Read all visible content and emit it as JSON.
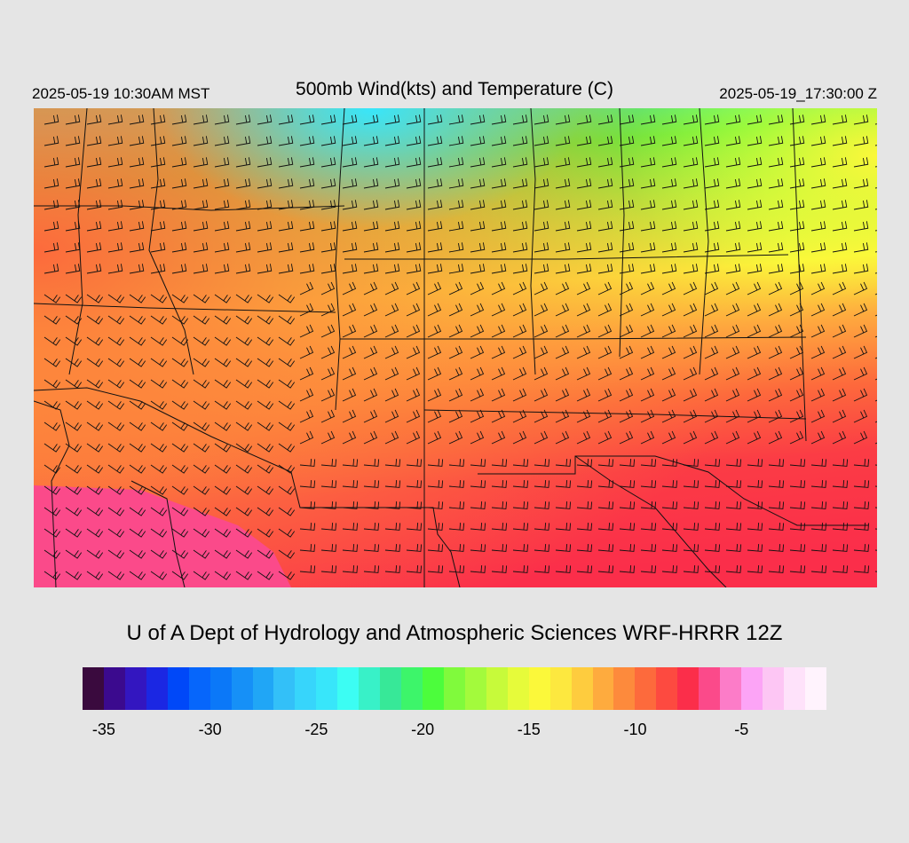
{
  "header": {
    "local_time": "2025-05-19 10:30AM MST",
    "title": "500mb Wind(kts) and Temperature (C)",
    "valid_time": "2025-05-19_17:30:00 Z"
  },
  "footer": {
    "credit": "U of A Dept of Hydrology and Atmospheric Sciences WRF-HRRR 12Z"
  },
  "legend": {
    "colors": [
      "#3a0a3e",
      "#3b0a8e",
      "#3316c0",
      "#1b27e3",
      "#0048f8",
      "#0666fb",
      "#0b78f8",
      "#1690f7",
      "#20a6f6",
      "#33c0f8",
      "#37d5fb",
      "#38e6fa",
      "#3cfdf3",
      "#38f1c8",
      "#37e898",
      "#3df56a",
      "#4cfd3c",
      "#80fa3c",
      "#a3fa3c",
      "#c7fa3a",
      "#e6fb3a",
      "#fbf83a",
      "#fde83f",
      "#fecc3e",
      "#feab3e",
      "#fd8a3c",
      "#fd6a3c",
      "#fd4a40",
      "#fb2e4a",
      "#fb4a8a",
      "#fc7cc8",
      "#fca4f6",
      "#fdc6f4",
      "#fee2fa",
      "#fff3fd"
    ],
    "ticks": [
      "-35",
      "-30",
      "-25",
      "-20",
      "-15",
      "-10",
      "-5"
    ]
  },
  "map": {
    "variable": "500mb temperature (C) with wind barbs (kts)",
    "region": "Southwestern / central United States"
  }
}
